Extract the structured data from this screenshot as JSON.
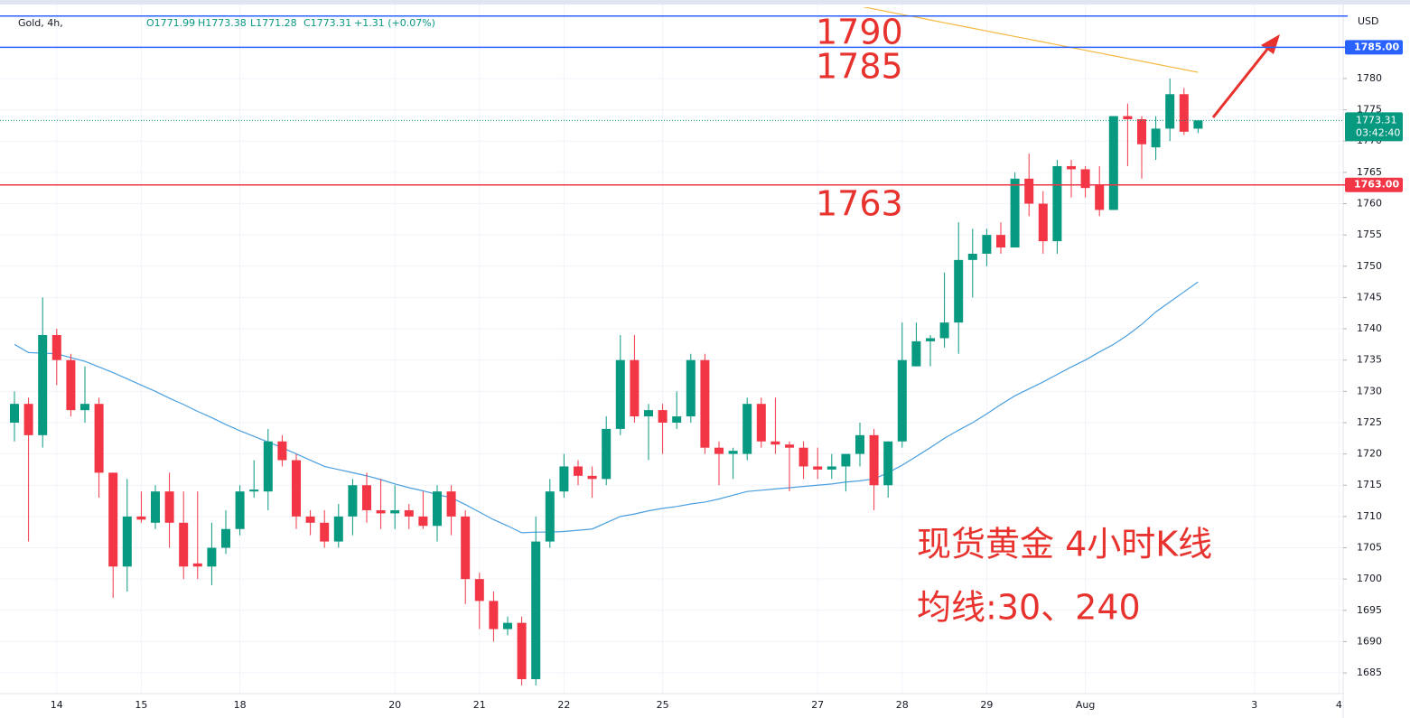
{
  "chart_data": {
    "type": "candlestick",
    "title": "Gold, 4h,",
    "ohlc_legend": [
      "O1771.99",
      "H1773.38",
      "L1771.28",
      "C1773.31",
      "+1.31 (+0.07%)"
    ],
    "currency": "USD",
    "up_color": "#089981",
    "down_color": "#f23645",
    "categories": [
      null,
      null,
      null,
      "14",
      null,
      null,
      null,
      null,
      null,
      "15",
      null,
      null,
      null,
      null,
      null,
      null,
      "18",
      null,
      null,
      null,
      null,
      null,
      null,
      null,
      null,
      null,
      null,
      "20",
      null,
      null,
      null,
      null,
      null,
      "21",
      null,
      null,
      null,
      null,
      null,
      "22",
      null,
      null,
      null,
      null,
      null,
      null,
      "25",
      null,
      null,
      null,
      null,
      null,
      null,
      null,
      null,
      null,
      null,
      "27",
      null,
      null,
      null,
      null,
      null,
      "28",
      null,
      null,
      null,
      null,
      null,
      "29",
      null,
      null,
      null,
      null,
      null,
      null,
      "Aug",
      null,
      null,
      null,
      null,
      null,
      null,
      null,
      null,
      null,
      null,
      null,
      "3",
      null,
      null,
      null,
      null,
      null,
      "4"
    ],
    "open": [
      1725,
      1728,
      1723,
      1739,
      1735,
      1727,
      1728,
      1717,
      1702,
      1710,
      1709,
      1714,
      1709,
      1702.5,
      1702,
      1705,
      1708,
      1714,
      1714,
      1722,
      1719,
      1710,
      1709,
      1706,
      1710,
      1715,
      1711,
      1710.5,
      1711,
      1710,
      1708.5,
      1714,
      1710,
      1700,
      1696.5,
      1692,
      1693,
      1684,
      1706,
      1714,
      1718,
      1716.5,
      1716,
      1724,
      1735,
      1726,
      1727,
      1725,
      1726,
      1735,
      1721,
      1720,
      1720,
      1728,
      1722,
      1721.5,
      1721,
      1718,
      1717.5,
      1718,
      1720,
      1723,
      1715,
      1722,
      1734,
      1738,
      1738.5,
      1741,
      1751,
      1752,
      1755,
      1753,
      1764,
      1760,
      1754,
      1766,
      1765.5,
      1763,
      1759,
      1774,
      1773.5,
      1769,
      1772,
      1777.5,
      1771.99,
      null,
      null,
      null,
      null,
      null,
      null,
      null,
      null,
      null,
      null
    ],
    "high": [
      1730,
      1729,
      1745,
      1740,
      1736,
      1734,
      1729,
      1717,
      1716,
      1714,
      1715,
      1717,
      1714,
      1714,
      1709,
      1711,
      1715,
      1719,
      1724,
      1723,
      1720,
      1711,
      1711,
      1712,
      1716,
      1717,
      1716,
      1715,
      1712,
      1714,
      1715,
      1715,
      1711,
      1701,
      1698,
      1694,
      1694,
      1710,
      1716,
      1720,
      1719,
      1718,
      1726,
      1739,
      1739,
      1728,
      1728,
      1730,
      1736,
      1736,
      1722,
      1721,
      1729,
      1729,
      1729,
      1722,
      1722,
      1721,
      1720,
      1720,
      1725,
      1724,
      1722,
      1741,
      1741,
      1739,
      1749,
      1757,
      1756,
      1756,
      1757,
      1765,
      1768,
      1762,
      1767,
      1767,
      1766,
      1766,
      1774,
      1776,
      1774,
      1774,
      1780,
      1778.5,
      1773.38,
      null,
      null,
      null,
      null,
      null,
      null,
      null,
      null,
      null,
      null
    ],
    "low": [
      1722,
      1706,
      1721,
      1731,
      1726,
      1725,
      1713,
      1697,
      1698,
      1709,
      1708,
      1705,
      1700,
      1700,
      1699,
      1704,
      1707,
      1713,
      1711,
      1718,
      1708,
      1707,
      1705,
      1705,
      1707,
      1709,
      1708,
      1708,
      1708,
      1708,
      1706,
      1707,
      1696,
      1692,
      1690,
      1691,
      1683,
      1683,
      1705,
      1713,
      1715,
      1713,
      1715,
      1723,
      1725,
      1719,
      1720,
      1724,
      1725,
      1720,
      1715,
      1716,
      1719,
      1721,
      1720,
      1714,
      1716,
      1716,
      1716,
      1714,
      1718,
      1711,
      1713,
      1721,
      1734,
      1734,
      1737,
      1736,
      1745,
      1750,
      1752,
      1753,
      1758,
      1752,
      1752,
      1761,
      1761,
      1758,
      1759,
      1766,
      1764,
      1767,
      1770,
      1771,
      1771.28,
      null,
      null,
      null,
      null,
      null,
      null,
      null,
      null,
      null,
      null
    ],
    "close": [
      1728,
      1723,
      1739,
      1735,
      1727,
      1728,
      1717,
      1702,
      1710,
      1709.5,
      1714,
      1709,
      1702,
      1702,
      1705,
      1708,
      1714,
      1714.3,
      1722,
      1719,
      1710,
      1709,
      1706,
      1710,
      1715,
      1711,
      1710.5,
      1711,
      1710,
      1708.5,
      1714,
      1710,
      1700,
      1696.5,
      1692,
      1693,
      1684,
      1706,
      1714,
      1718,
      1716.5,
      1716,
      1724,
      1735,
      1726,
      1727,
      1725,
      1726,
      1735,
      1721,
      1720,
      1720.5,
      1728,
      1722,
      1721.5,
      1721,
      1718,
      1717.5,
      1718,
      1720,
      1723,
      1715,
      1722,
      1735,
      1738,
      1738.5,
      1741,
      1751,
      1752,
      1755,
      1753,
      1764,
      1760,
      1754,
      1766,
      1765.5,
      1762.5,
      1759,
      1774,
      1773.5,
      1769.5,
      1772,
      1777.5,
      1771.5,
      1773.31,
      null,
      null,
      null,
      null,
      null,
      null,
      null,
      null,
      null,
      null
    ],
    "moving_averages": [
      {
        "color": "#4a9fe0",
        "values": [
          1737.5,
          1736.2,
          1736.1,
          1736,
          1735.4,
          1734.8,
          1733.9,
          1733,
          1732,
          1731,
          1730,
          1728.9,
          1727.9,
          1726.8,
          1725.8,
          1724.7,
          1723.7,
          1722.8,
          1721.9,
          1721,
          1720,
          1719,
          1718,
          1717.5,
          1717,
          1716.5,
          1715.9,
          1715.2,
          1714.6,
          1714.1,
          1713.5,
          1713,
          1711.9,
          1710.7,
          1709.5,
          1708.5,
          1707.4,
          1707.5,
          1707.5,
          1707.6,
          1707.8,
          1708,
          1709,
          1710,
          1710.4,
          1710.9,
          1711.3,
          1711.6,
          1712,
          1712.3,
          1712.8,
          1713.4,
          1714,
          1714.2,
          1714.4,
          1714.6,
          1714.8,
          1715,
          1715.2,
          1715.5,
          1715.7,
          1716,
          1717,
          1718.2,
          1719.6,
          1721,
          1722.5,
          1723.8,
          1725,
          1726.4,
          1727.9,
          1729.3,
          1730.4,
          1731.5,
          1732.7,
          1733.9,
          1735,
          1736.3,
          1737.5,
          1739,
          1740.7,
          1742.7,
          1744.3,
          1745.9,
          1747.5,
          null,
          null,
          null,
          null,
          null,
          null,
          null,
          null,
          null,
          null
        ]
      },
      {
        "color": "#f5b942",
        "values": [
          null,
          null,
          null,
          null,
          null,
          null,
          null,
          null,
          null,
          null,
          null,
          null,
          null,
          null,
          null,
          null,
          null,
          null,
          null,
          null,
          null,
          null,
          null,
          null,
          null,
          null,
          null,
          null,
          null,
          null,
          null,
          null,
          null,
          null,
          null,
          null,
          null,
          null,
          null,
          null,
          null,
          null,
          null,
          null,
          null,
          null,
          null,
          null,
          null,
          null,
          null,
          null,
          null,
          null,
          null,
          null,
          null,
          null,
          null,
          1792,
          1791.56,
          1791.12,
          1790.68,
          1790.24,
          1789.8,
          1789.36,
          1788.92,
          1788.48,
          1788.04,
          1787.6,
          1787.16,
          1786.72,
          1786.28,
          1785.84,
          1785.4,
          1784.96,
          1784.52,
          1784.08,
          1783.64,
          1783.2,
          1782.76,
          1782.32,
          1781.88,
          1781.44,
          1781,
          null,
          null,
          null,
          null,
          null,
          null,
          null,
          null,
          null,
          null
        ]
      }
    ],
    "hlines": [
      {
        "value": 1790,
        "color": "#2962ff"
      },
      {
        "value": 1785,
        "label": "1785.00",
        "color": "#2962ff"
      },
      {
        "value": 1763,
        "label": "1763.00",
        "color": "#f23645"
      }
    ],
    "last_price": {
      "value": 1773.31,
      "countdown": "03:42:40",
      "color": "#089981"
    },
    "annotations": [
      "1790",
      "1785",
      "1763",
      "现货黄金 4小时K线",
      "均线:30、240"
    ],
    "ylim": [
      1681.4,
      1791.4
    ],
    "yticks": [
      1685,
      1690,
      1695,
      1700,
      1705,
      1710,
      1715,
      1720,
      1725,
      1730,
      1735,
      1740,
      1745,
      1750,
      1755,
      1760,
      1765,
      1770,
      1775,
      1780
    ],
    "grid": true
  }
}
